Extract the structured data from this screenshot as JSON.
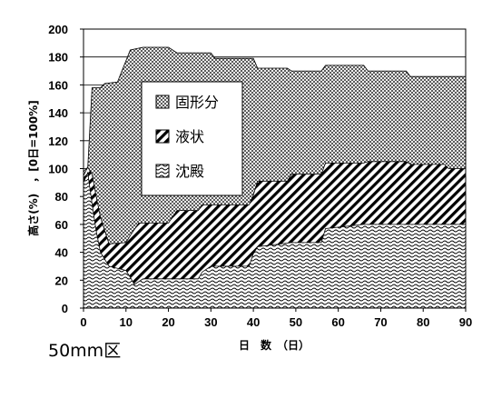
{
  "chart_data": {
    "type": "area",
    "panel_label": "50mm区",
    "xlabel": "日　数　（日）",
    "ylabel": "高さ(%)　，[0日=100%]",
    "xlim": [
      0,
      90
    ],
    "ylim": [
      0,
      200
    ],
    "x_ticks": [
      "0",
      "10",
      "20",
      "30",
      "40",
      "50",
      "60",
      "70",
      "80",
      "90"
    ],
    "y_ticks": [
      "0",
      "20",
      "40",
      "60",
      "80",
      "100",
      "120",
      "140",
      "160",
      "180",
      "200"
    ],
    "grid": "horizontal",
    "legend_position": "upper-left inside plot",
    "series": [
      {
        "name": "固形分",
        "pattern": "crosshatch",
        "points": [
          [
            0,
            98
          ],
          [
            1,
            101
          ],
          [
            2,
            158
          ],
          [
            4,
            158
          ],
          [
            5,
            161
          ],
          [
            8,
            162
          ],
          [
            11,
            185
          ],
          [
            14,
            187
          ],
          [
            20,
            187
          ],
          [
            22,
            183
          ],
          [
            30,
            183
          ],
          [
            31,
            179
          ],
          [
            40,
            179
          ],
          [
            41,
            172
          ],
          [
            48,
            172
          ],
          [
            49,
            170
          ],
          [
            56,
            170
          ],
          [
            57,
            174
          ],
          [
            66,
            174
          ],
          [
            67,
            170
          ],
          [
            76,
            170
          ],
          [
            77,
            166
          ],
          [
            90,
            166
          ]
        ]
      },
      {
        "name": "液状",
        "pattern": "diagonal",
        "points": [
          [
            0,
            95
          ],
          [
            1,
            101
          ],
          [
            2,
            96
          ],
          [
            3,
            80
          ],
          [
            4,
            65
          ],
          [
            6,
            46
          ],
          [
            10,
            47
          ],
          [
            11,
            52
          ],
          [
            13,
            61
          ],
          [
            20,
            61
          ],
          [
            22,
            70
          ],
          [
            27,
            70
          ],
          [
            28,
            74
          ],
          [
            39,
            74
          ],
          [
            40,
            81
          ],
          [
            41,
            91
          ],
          [
            48,
            91
          ],
          [
            49,
            96
          ],
          [
            56,
            96
          ],
          [
            57,
            104
          ],
          [
            66,
            104
          ],
          [
            67,
            105
          ],
          [
            76,
            105
          ],
          [
            77,
            103
          ],
          [
            85,
            103
          ],
          [
            86,
            100
          ],
          [
            90,
            100
          ]
        ]
      },
      {
        "name": "沈殿",
        "pattern": "wavy",
        "points": [
          [
            0,
            90
          ],
          [
            1,
            97
          ],
          [
            2,
            75
          ],
          [
            3,
            55
          ],
          [
            4,
            40
          ],
          [
            6,
            30
          ],
          [
            10,
            27
          ],
          [
            11,
            22
          ],
          [
            12,
            17
          ],
          [
            14,
            21
          ],
          [
            27,
            21
          ],
          [
            28,
            26
          ],
          [
            30,
            30
          ],
          [
            39,
            30
          ],
          [
            40,
            39
          ],
          [
            41,
            44
          ],
          [
            49,
            47
          ],
          [
            56,
            47
          ],
          [
            57,
            57
          ],
          [
            66,
            60
          ],
          [
            77,
            60
          ],
          [
            90,
            60
          ]
        ]
      }
    ]
  }
}
